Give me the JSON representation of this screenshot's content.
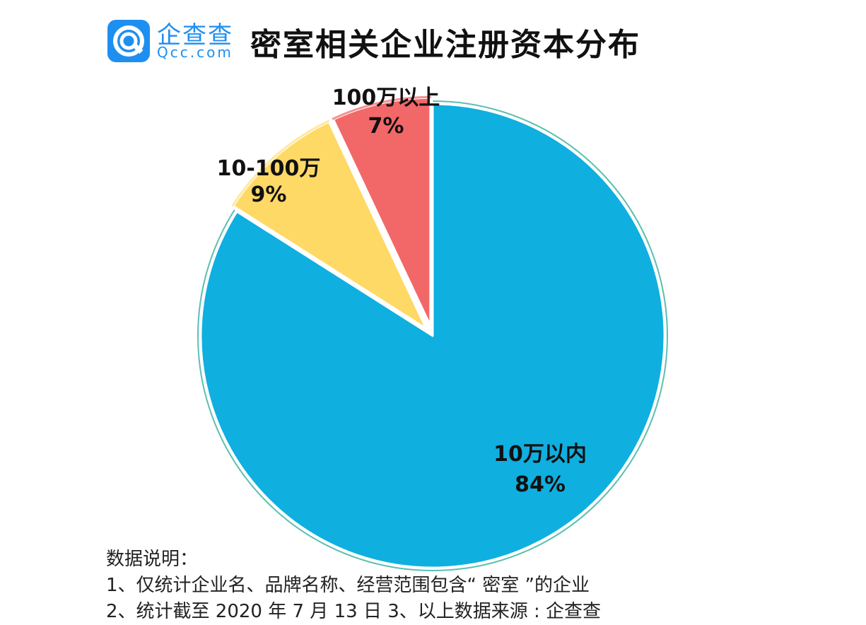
{
  "brand": {
    "name_cn": "企查查",
    "name_en": "Qcc.com",
    "logo_color": "#1e8ff0"
  },
  "title": "密室相关企业注册资本分布",
  "chart_data": {
    "type": "pie",
    "title": "密室相关企业注册资本分布",
    "start_angle_deg": 0,
    "direction": "clockwise",
    "slices": [
      {
        "label": "10万以内",
        "value": 84,
        "value_label": "84%",
        "color": "#0fafe0",
        "exploded": false
      },
      {
        "label": "10-100万",
        "value": 9,
        "value_label": "9%",
        "color": "#ffd966",
        "exploded": true
      },
      {
        "label": "100万以上",
        "value": 7,
        "value_label": "7%",
        "color": "#f26868",
        "exploded": true
      }
    ],
    "outline_color": "#5bbfb0"
  },
  "notes": {
    "heading": "数据说明：",
    "line1": "1、仅统计企业名、品牌名称、经营范围包含“ 密室 ”的企业",
    "line2": "2、统计截至 2020 年 7 月 13 日    3、以上数据来源 : 企查查"
  }
}
